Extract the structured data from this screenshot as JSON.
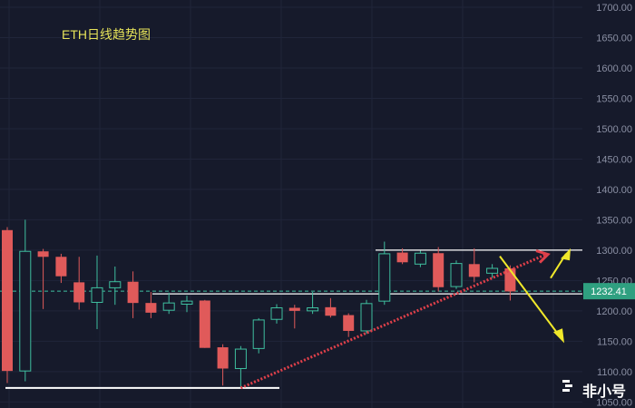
{
  "chart_data": {
    "type": "candlestick",
    "title": "ETH日线趋势图",
    "ylim": [
      1040,
      1712
    ],
    "y_ticks": [
      1050,
      1100,
      1150,
      1200,
      1250,
      1300,
      1350,
      1400,
      1450,
      1500,
      1550,
      1600,
      1650,
      1700
    ],
    "y_tick_labels": [
      "1050.00",
      "1100.00",
      "1150.00",
      "1200.00",
      "1250.00",
      "1300.00",
      "1350.00",
      "1400.00",
      "1450.00",
      "1500.00",
      "1550.00",
      "1600.00",
      "1650.00",
      "1700.00"
    ],
    "last_price": 1232.41,
    "last_price_label": "1232.41",
    "candles": [
      {
        "o": 1333,
        "h": 1338,
        "l": 1081,
        "c": 1101
      },
      {
        "o": 1101,
        "h": 1350,
        "l": 1084,
        "c": 1298
      },
      {
        "o": 1298,
        "h": 1302,
        "l": 1203,
        "c": 1289
      },
      {
        "o": 1289,
        "h": 1294,
        "l": 1246,
        "c": 1257
      },
      {
        "o": 1247,
        "h": 1289,
        "l": 1202,
        "c": 1214
      },
      {
        "o": 1214,
        "h": 1291,
        "l": 1170,
        "c": 1238
      },
      {
        "o": 1238,
        "h": 1273,
        "l": 1210,
        "c": 1248
      },
      {
        "o": 1248,
        "h": 1265,
        "l": 1188,
        "c": 1213
      },
      {
        "o": 1213,
        "h": 1231,
        "l": 1188,
        "c": 1197
      },
      {
        "o": 1201,
        "h": 1230,
        "l": 1195,
        "c": 1213
      },
      {
        "o": 1211,
        "h": 1225,
        "l": 1198,
        "c": 1216
      },
      {
        "o": 1217,
        "h": 1218,
        "l": 1139,
        "c": 1139
      },
      {
        "o": 1140,
        "h": 1145,
        "l": 1077,
        "c": 1105
      },
      {
        "o": 1105,
        "h": 1142,
        "l": 1075,
        "c": 1137
      },
      {
        "o": 1138,
        "h": 1188,
        "l": 1130,
        "c": 1185
      },
      {
        "o": 1186,
        "h": 1211,
        "l": 1179,
        "c": 1205
      },
      {
        "o": 1205,
        "h": 1210,
        "l": 1171,
        "c": 1200
      },
      {
        "o": 1200,
        "h": 1231,
        "l": 1195,
        "c": 1205
      },
      {
        "o": 1206,
        "h": 1221,
        "l": 1189,
        "c": 1192
      },
      {
        "o": 1193,
        "h": 1196,
        "l": 1157,
        "c": 1167
      },
      {
        "o": 1167,
        "h": 1218,
        "l": 1162,
        "c": 1212
      },
      {
        "o": 1216,
        "h": 1314,
        "l": 1210,
        "c": 1294
      },
      {
        "o": 1296,
        "h": 1303,
        "l": 1277,
        "c": 1280
      },
      {
        "o": 1277,
        "h": 1299,
        "l": 1272,
        "c": 1295
      },
      {
        "o": 1295,
        "h": 1305,
        "l": 1232,
        "c": 1239
      },
      {
        "o": 1240,
        "h": 1283,
        "l": 1236,
        "c": 1278
      },
      {
        "o": 1277,
        "h": 1303,
        "l": 1247,
        "c": 1256
      },
      {
        "o": 1262,
        "h": 1277,
        "l": 1254,
        "c": 1270
      },
      {
        "o": 1270,
        "h": 1275,
        "l": 1217,
        "c": 1232
      }
    ],
    "bull_color": "#3fbf9f",
    "bear_color": "#e05a5a",
    "annotations": {
      "support_level": 1073,
      "resistance_level": 1300,
      "mid_level": 1228,
      "trendline_from": {
        "candle": 13,
        "price": 1073
      },
      "trendline_to": {
        "candle": 30,
        "price": 1293
      }
    }
  },
  "watermark": {
    "text": "非小号"
  }
}
